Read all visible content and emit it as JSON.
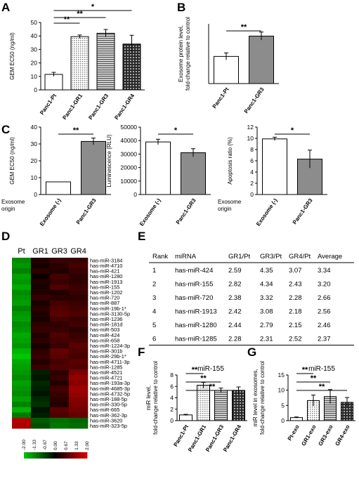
{
  "panel_labels": [
    "A",
    "B",
    "C",
    "D",
    "E",
    "F",
    "G"
  ],
  "colors": {
    "white_bar": "#ffffff",
    "gray_bar": "#8c8c8c",
    "heatmap_low": "#00c800",
    "heatmap_mid": "#000000",
    "heatmap_high": "#e00000"
  },
  "chart_data": [
    {
      "id": "A",
      "type": "bar",
      "categories": [
        "Panc1-Pt",
        "Panc1-GR1",
        "Panc1-GR3",
        "Panc1-GR4"
      ],
      "values": [
        11.5,
        39.5,
        42,
        34
      ],
      "errors": [
        1.5,
        1.2,
        2.8,
        6.5
      ],
      "fills": [
        "white",
        "dots",
        "hatch",
        "grid"
      ],
      "ylabel": "GEM EC50 (ng/ml)",
      "ylim": [
        0,
        50
      ],
      "yticks": [
        "0",
        "10",
        "20",
        "30",
        "40",
        "50"
      ],
      "significance": [
        {
          "from": 0,
          "to": 1,
          "label": "**"
        },
        {
          "from": 0,
          "to": 2,
          "label": "**"
        },
        {
          "from": 0,
          "to": 3,
          "label": "*"
        }
      ]
    },
    {
      "id": "B",
      "type": "bar",
      "categories": [
        "Panc1-Pt",
        "Panc1-GR3"
      ],
      "values": [
        1.0,
        1.75
      ],
      "errors": [
        0.13,
        0.15
      ],
      "fills": [
        "white",
        "gray"
      ],
      "ylabel_lines": [
        "Exosome protein level,",
        "fold-change relative to control"
      ],
      "ylim": [
        0,
        2.2
      ],
      "yticks": [],
      "significance": [
        {
          "from": 0,
          "to": 1,
          "label": "**"
        }
      ]
    },
    {
      "id": "C1",
      "type": "bar",
      "categories": [
        "Exosome (-)",
        "Panc1-GR3"
      ],
      "values": [
        7.5,
        31.5
      ],
      "errors": [
        0,
        2.0
      ],
      "fills": [
        "white",
        "gray"
      ],
      "ylabel": "GEM EC50 (ng/ml)",
      "xgroup_label": "Exosome origin",
      "ylim": [
        0,
        40
      ],
      "yticks": [
        "0",
        "10",
        "20",
        "30",
        "40"
      ],
      "significance": [
        {
          "from": 0,
          "to": 1,
          "label": "**"
        }
      ]
    },
    {
      "id": "C2",
      "type": "bar",
      "categories": [
        "Exosome (-)",
        "Panc1-GR3"
      ],
      "values": [
        39000,
        31000
      ],
      "errors": [
        2000,
        3000
      ],
      "fills": [
        "white",
        "gray"
      ],
      "ylabel": "Luminescence (RLU)",
      "ylim": [
        0,
        50000
      ],
      "yticks": [
        "0",
        "10000",
        "20000",
        "30000",
        "40000",
        "50000"
      ],
      "significance": [
        {
          "from": 0,
          "to": 1,
          "label": "*"
        }
      ]
    },
    {
      "id": "C3",
      "type": "bar",
      "categories": [
        "Exosome (-)",
        "Panc1-GR3"
      ],
      "values": [
        9.9,
        6.3
      ],
      "errors": [
        0.3,
        1.6
      ],
      "fills": [
        "white",
        "gray"
      ],
      "ylabel": "Apoptosis ratio (%)",
      "xgroup_label": "Exosome origin",
      "ylim": [
        0,
        12
      ],
      "yticks": [
        "0",
        "2",
        "4",
        "6",
        "8",
        "10",
        "12"
      ],
      "significance": [
        {
          "from": 0,
          "to": 1,
          "label": "*"
        }
      ]
    },
    {
      "id": "D",
      "type": "heatmap",
      "columns": [
        "Pt",
        "GR1",
        "GR3",
        "GR4"
      ],
      "rows": [
        "has-miR-3184",
        "has-miR-4710",
        "has-miR-421",
        "has-miR-1280",
        "has-miR-1913",
        "has-miR-155",
        "has-miR-1202",
        "has-miR-720",
        "has-miR-887",
        "has-miR-19b-1*",
        "has-miR-3130-5p",
        "has-miR-1236",
        "has-miR-181d",
        "has-miR-503",
        "has-miR-424",
        "has-miR-658",
        "has-miR-1224-3p",
        "has-miR-301b",
        "has-miR-29b-1*",
        "has-miR-4711-3p",
        "has-miR-1285",
        "has-miR-4521",
        "has-miR-4721",
        "has-miR-193a-3p",
        "has-miR-4685-3p",
        "has-miR-4732-5p",
        "has-miR-188-5p",
        "has-miR-330-5p",
        "has-miR-665",
        "has-miR-362-3p",
        "has-miR-3620",
        "has-miR-323-5p"
      ],
      "values": [
        [
          -1.4,
          0.3,
          0.5,
          0.5
        ],
        [
          -1.5,
          0.2,
          0.4,
          0.6
        ],
        [
          -1.3,
          0.4,
          0.3,
          0.5
        ],
        [
          -1.6,
          0.1,
          0.6,
          0.4
        ],
        [
          -1.5,
          0.3,
          0.5,
          0.4
        ],
        [
          -1.7,
          0.2,
          0.7,
          0.5
        ],
        [
          -1.4,
          0.3,
          0.3,
          0.5
        ],
        [
          -1.5,
          0.5,
          0.4,
          0.4
        ],
        [
          -1.6,
          0.2,
          0.6,
          0.5
        ],
        [
          -1.3,
          0.4,
          0.7,
          0.6
        ],
        [
          -1.5,
          0.3,
          0.8,
          0.7
        ],
        [
          -1.6,
          0.2,
          0.6,
          0.5
        ],
        [
          -1.4,
          0.4,
          0.4,
          0.6
        ],
        [
          -1.5,
          0.5,
          0.5,
          0.4
        ],
        [
          -1.7,
          0.3,
          0.7,
          0.5
        ],
        [
          -1.6,
          0.4,
          0.6,
          0.6
        ],
        [
          -1.5,
          0.2,
          0.5,
          0.8
        ],
        [
          -1.8,
          0.4,
          0.9,
          0.7
        ],
        [
          -2.0,
          0.5,
          0.8,
          0.6
        ],
        [
          -1.7,
          0.3,
          0.6,
          0.8
        ],
        [
          -1.6,
          0.5,
          0.7,
          0.7
        ],
        [
          -1.5,
          -0.3,
          0.4,
          1.1
        ],
        [
          -1.4,
          -0.2,
          0.5,
          1.3
        ],
        [
          -1.6,
          -0.4,
          0.3,
          1.2
        ],
        [
          -1.5,
          -0.3,
          0.6,
          1.4
        ],
        [
          -1.4,
          -0.2,
          0.5,
          1.3
        ],
        [
          -1.6,
          -0.4,
          0.4,
          1.2
        ],
        [
          -1.3,
          -0.5,
          0.3,
          1.1
        ],
        [
          -1.8,
          -0.2,
          0.8,
          1.0
        ],
        [
          -1.2,
          -0.3,
          0.7,
          0.9
        ],
        [
          1.6,
          -0.9,
          -1.1,
          -1.0
        ],
        [
          1.5,
          -0.8,
          -1.2,
          -1.1
        ]
      ],
      "colorbar_ticks": [
        "-2.00",
        "-1.33",
        "-0.67",
        "0.00",
        "0.67",
        "1.33",
        "2.00"
      ],
      "range": [
        -2,
        2
      ]
    },
    {
      "id": "E",
      "type": "table",
      "headers": [
        "Rank",
        "miRNA",
        "GR1/Pt",
        "GR3/Pt",
        "GR4/Pt",
        "Average"
      ],
      "rows": [
        [
          "1",
          "has-miR-424",
          "2.59",
          "4.35",
          "3.07",
          "3.34"
        ],
        [
          "2",
          "has-miR-155",
          "2.82",
          "4.34",
          "2.43",
          "3.20"
        ],
        [
          "3",
          "has-miR-720",
          "2.38",
          "3.32",
          "2.28",
          "2.66"
        ],
        [
          "4",
          "has-miR-1913",
          "2.42",
          "3.08",
          "2.18",
          "2.56"
        ],
        [
          "5",
          "has-miR-1280",
          "2.44",
          "2.79",
          "2.15",
          "2.46"
        ],
        [
          "6",
          "has-miR-1285",
          "2.28",
          "2.31",
          "2.52",
          "2.37"
        ]
      ]
    },
    {
      "id": "F",
      "type": "bar",
      "title": "miR-155",
      "categories": [
        "Panc1-Pt",
        "Panc1-GR1",
        "Panc1-GR3",
        "Panc1-GR4"
      ],
      "values": [
        1.0,
        6.2,
        5.3,
        5.3
      ],
      "errors": [
        0.1,
        0.5,
        0.4,
        0.6
      ],
      "fills": [
        "white",
        "dots",
        "hatch",
        "grid"
      ],
      "ylabel_lines": [
        "miR level,",
        "fold-change relative to control"
      ],
      "ylim": [
        0,
        8
      ],
      "yticks": [
        "0",
        "2",
        "4",
        "6",
        "8"
      ],
      "significance": [
        {
          "from": 0,
          "to": 1,
          "label": "**"
        },
        {
          "from": 0,
          "to": 2,
          "label": "**"
        },
        {
          "from": 0,
          "to": 3,
          "label": "**"
        }
      ]
    },
    {
      "id": "G",
      "type": "bar",
      "title": "miR-155",
      "categories": [
        "Pt-exo",
        "GR1-exo",
        "GR3-exo",
        "GR4-exo"
      ],
      "values": [
        1.0,
        6.6,
        7.9,
        6.0
      ],
      "errors": [
        0.2,
        1.8,
        2.3,
        1.6
      ],
      "fills": [
        "white",
        "dots",
        "hatch",
        "grid"
      ],
      "ylabel_lines": [
        "miR level in exosomes,",
        "fold-change relative to control"
      ],
      "ylim": [
        0,
        15
      ],
      "yticks": [
        "0",
        "5",
        "10",
        "15"
      ],
      "significance": [
        {
          "from": 0,
          "to": 1,
          "label": "**"
        },
        {
          "from": 0,
          "to": 2,
          "label": "**"
        },
        {
          "from": 0,
          "to": 3,
          "label": "**"
        }
      ]
    }
  ]
}
